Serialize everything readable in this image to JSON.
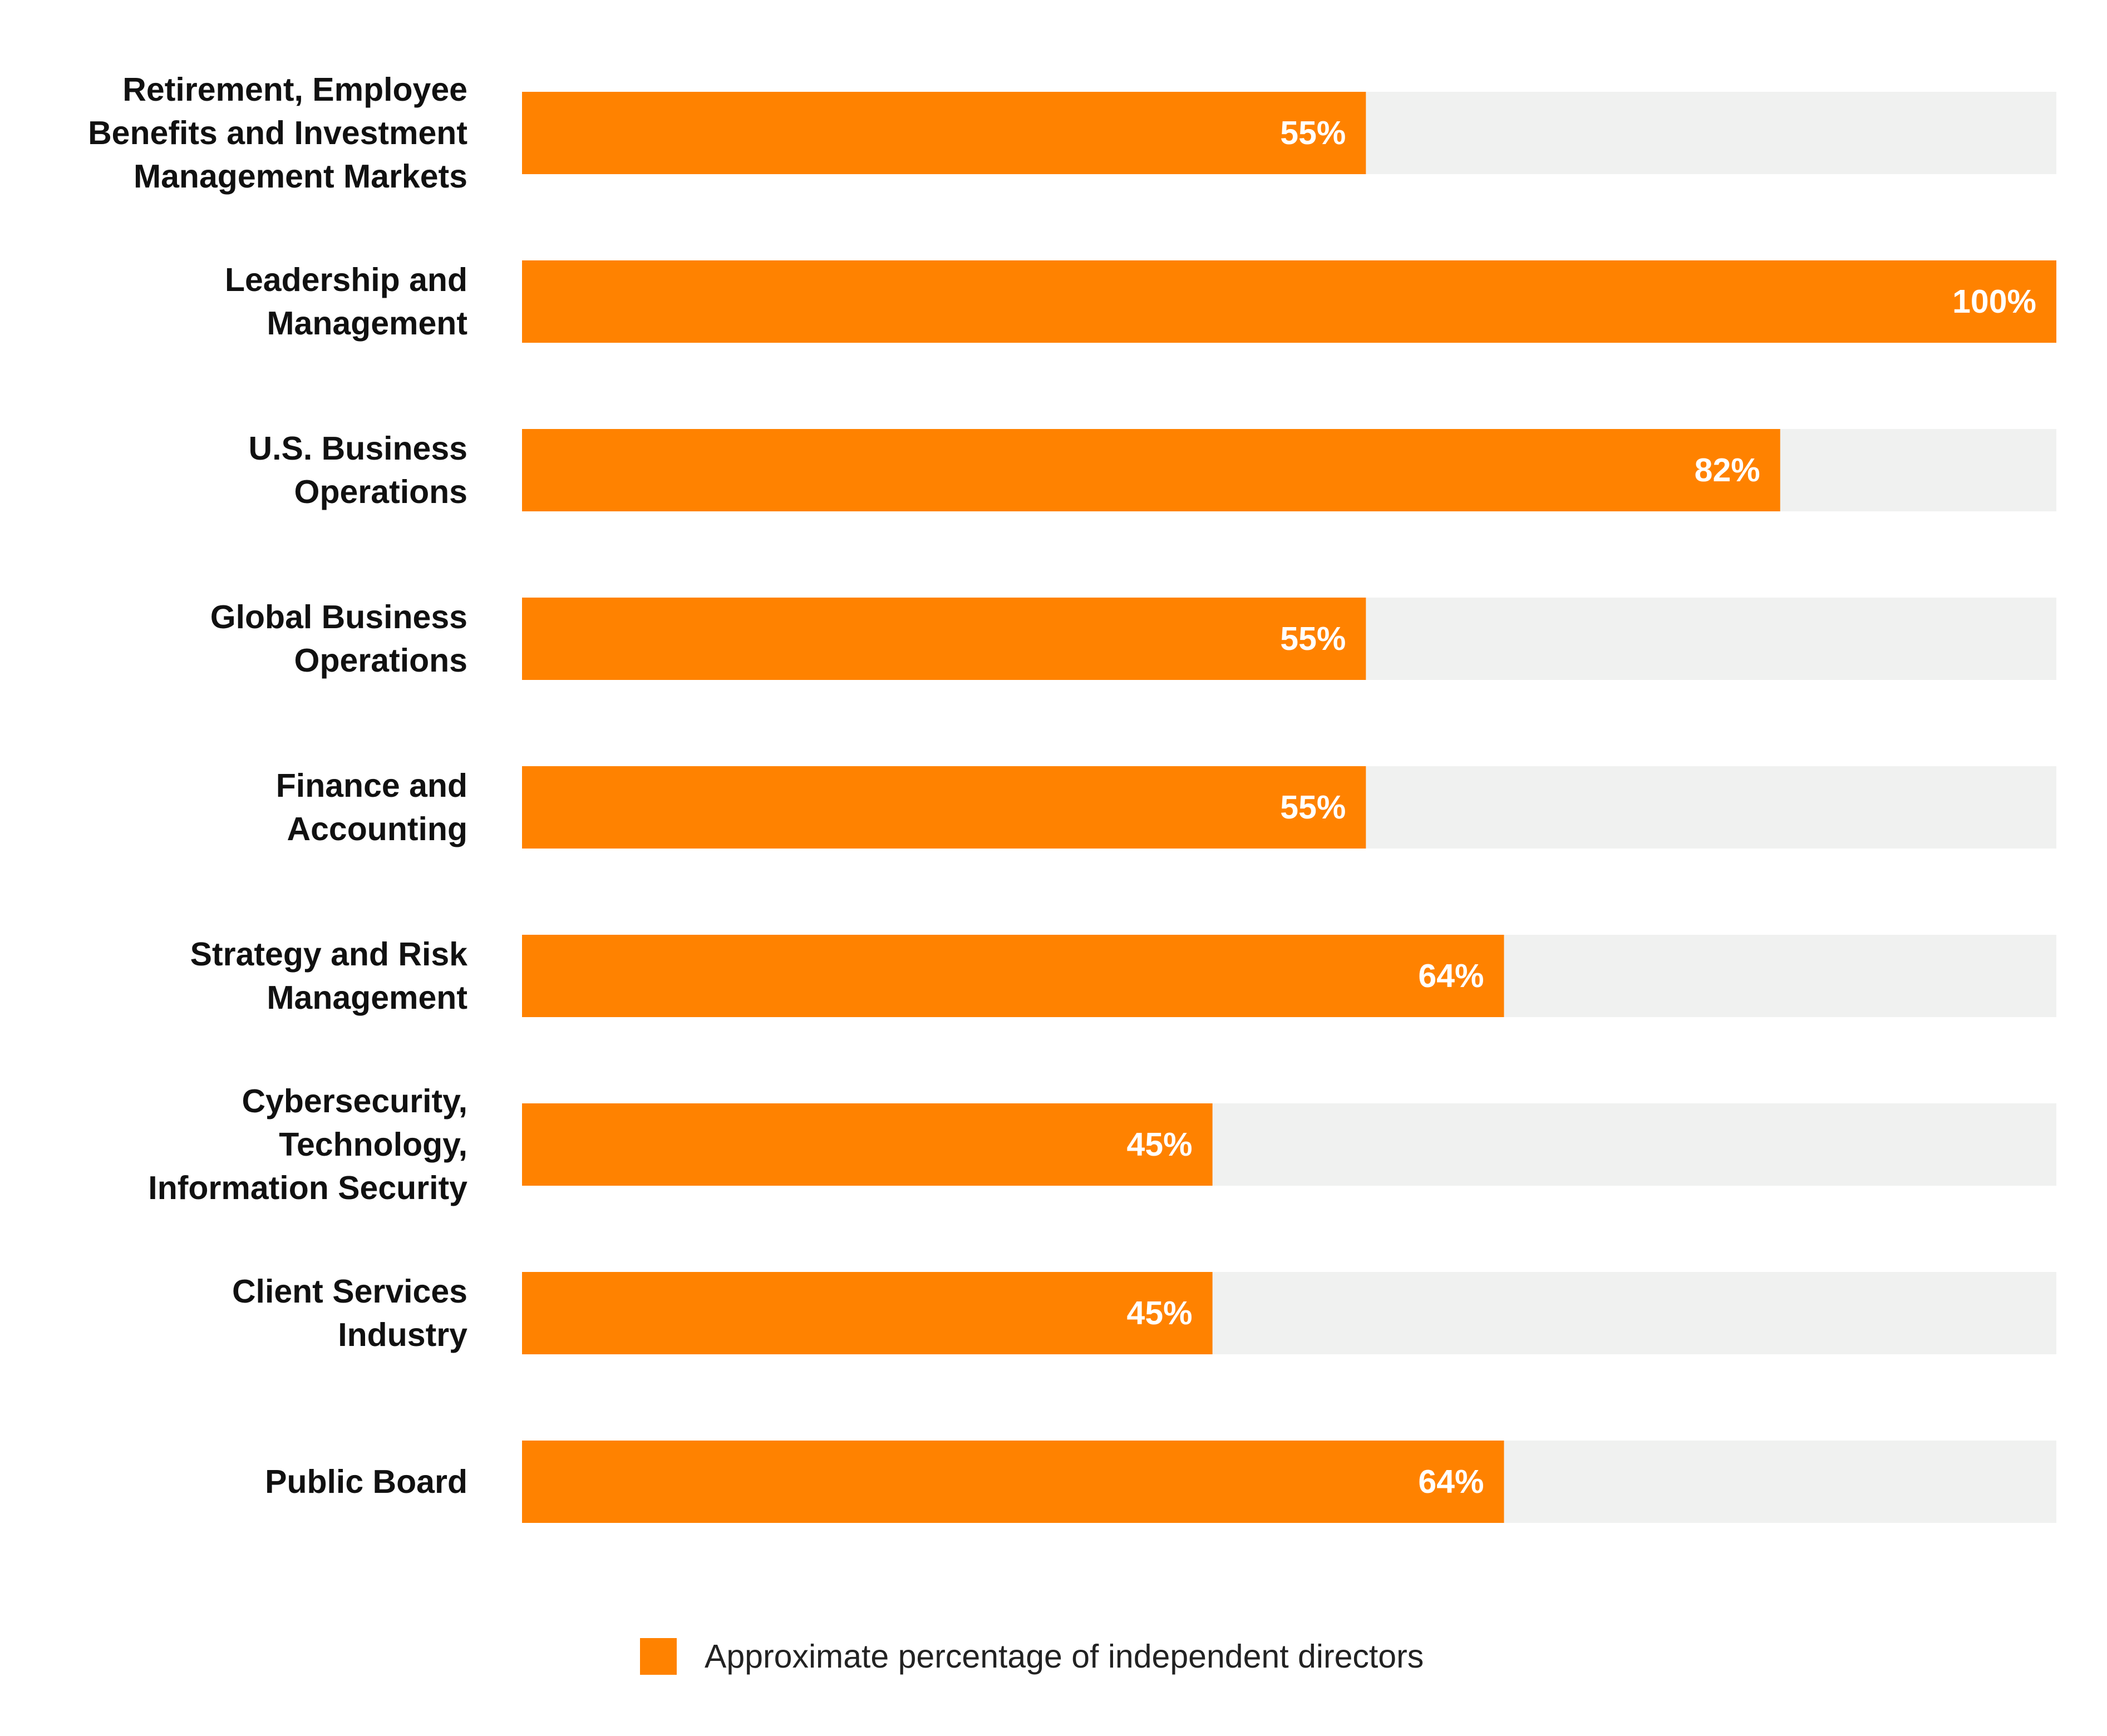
{
  "chart_data": {
    "type": "bar",
    "orientation": "horizontal",
    "categories": [
      "Retirement, Employee\nBenefits and Investment\nManagement Markets",
      "Leadership and\nManagement",
      "U.S. Business\nOperations",
      "Global Business\nOperations",
      "Finance and\nAccounting",
      "Strategy and Risk\nManagement",
      "Cybersecurity,\nTechnology,\nInformation Security",
      "Client Services\nIndustry",
      "Public Board"
    ],
    "values": [
      55,
      100,
      82,
      55,
      55,
      64,
      45,
      45,
      64
    ],
    "value_labels": [
      "55%",
      "100%",
      "82%",
      "55%",
      "55%",
      "64%",
      "45%",
      "45%",
      "64%"
    ],
    "series": [
      {
        "name": "Approximate percentage of independent directors"
      }
    ],
    "xlim": [
      0,
      100
    ],
    "grid": false,
    "legend_position": "bottom",
    "colors": {
      "bar": "#FF8200",
      "track": "#F0F1F0",
      "value_label": "#FFFFFF",
      "category_label": "#111111"
    }
  }
}
